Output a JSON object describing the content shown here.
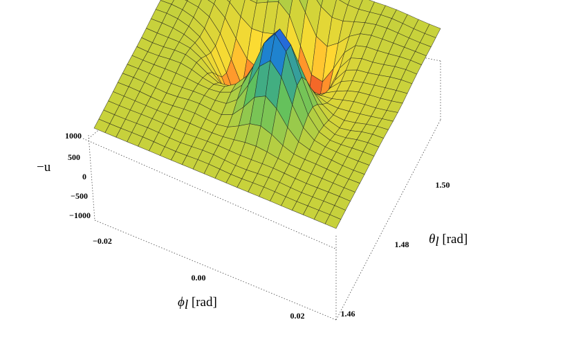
{
  "chart_data": {
    "type": "surface3d",
    "zlabel": "−u",
    "xlabel_symbol": "ϕ",
    "xlabel_sub": "l",
    "xlabel_unit": " [rad]",
    "ylabel_symbol": "θ",
    "ylabel_sub": "l",
    "ylabel_unit": " [rad]",
    "x_ticks": [
      "−0.02",
      "0.00",
      "0.02"
    ],
    "y_ticks": [
      "1.46",
      "1.48",
      "1.50"
    ],
    "z_ticks": [
      "1000",
      "500",
      "0",
      "−500",
      "−1000"
    ],
    "x_range": [
      -0.03,
      0.03
    ],
    "y_range": [
      1.455,
      1.515
    ],
    "z_range": [
      -1200,
      1200
    ],
    "grid_lines": 22,
    "surface_features": {
      "peaks": [
        {
          "phi": -0.0085,
          "theta": 1.493,
          "value": 1150
        },
        {
          "phi": 0.0035,
          "theta": 1.5,
          "value": 1180
        }
      ],
      "troughs": [
        {
          "phi": 0.0055,
          "theta": 1.478,
          "value": -1180
        },
        {
          "phi": -0.003,
          "theta": 1.507,
          "value": -420
        }
      ],
      "ridges": [
        {
          "phi": 0.016,
          "theta": 1.49,
          "value": 180
        }
      ]
    }
  }
}
